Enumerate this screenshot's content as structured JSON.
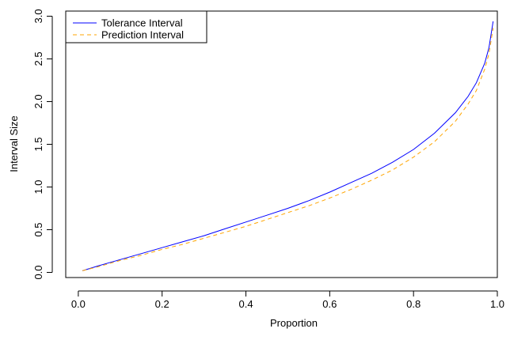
{
  "chart_data": {
    "type": "line",
    "title": "",
    "xlabel": "Proportion",
    "ylabel": "Interval Size",
    "xlim": [
      -0.03,
      1.0
    ],
    "ylim": [
      -0.06,
      3.06
    ],
    "x_ticks": [
      "0.0",
      "0.2",
      "0.4",
      "0.6",
      "0.8",
      "1.0"
    ],
    "y_ticks": [
      "0.0",
      "0.5",
      "1.0",
      "1.5",
      "2.0",
      "2.5",
      "3.0"
    ],
    "grid": false,
    "legend_position": "top-left",
    "legend": [
      "Tolerance Interval",
      "Prediction Interval"
    ],
    "x": [
      0.01,
      0.05,
      0.1,
      0.15,
      0.2,
      0.25,
      0.3,
      0.35,
      0.4,
      0.45,
      0.5,
      0.55,
      0.6,
      0.65,
      0.7,
      0.75,
      0.8,
      0.85,
      0.9,
      0.93,
      0.95,
      0.97,
      0.98,
      0.99
    ],
    "series": [
      {
        "name": "Tolerance Interval",
        "color": "#0000ff",
        "dash": "solid",
        "values": [
          0.02,
          0.08,
          0.15,
          0.22,
          0.29,
          0.36,
          0.43,
          0.51,
          0.59,
          0.67,
          0.75,
          0.84,
          0.94,
          1.05,
          1.16,
          1.29,
          1.44,
          1.63,
          1.87,
          2.06,
          2.22,
          2.45,
          2.63,
          2.94
        ]
      },
      {
        "name": "Prediction Interval",
        "color": "#ffa500",
        "dash": "dashed",
        "values": [
          0.02,
          0.07,
          0.14,
          0.2,
          0.27,
          0.33,
          0.4,
          0.47,
          0.54,
          0.62,
          0.7,
          0.78,
          0.87,
          0.97,
          1.08,
          1.2,
          1.35,
          1.53,
          1.77,
          1.97,
          2.13,
          2.38,
          2.56,
          2.86
        ]
      }
    ]
  }
}
